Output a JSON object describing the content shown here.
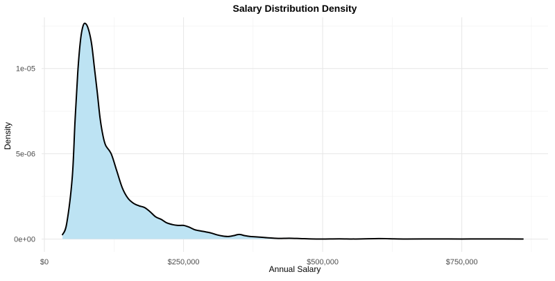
{
  "chart_data": {
    "type": "area",
    "title": "Salary Distribution Density",
    "xlabel": "Annual Salary",
    "ylabel": "Density",
    "xlim": [
      -5000,
      905000
    ],
    "ylim": [
      -7.5e-07,
      1.3e-05
    ],
    "x_ticks": [
      {
        "value": 0,
        "label": "$0"
      },
      {
        "value": 250000,
        "label": "$250,000"
      },
      {
        "value": 500000,
        "label": "$500,000"
      },
      {
        "value": 750000,
        "label": "$750,000"
      }
    ],
    "y_ticks": [
      {
        "value": 0,
        "label": "0e+00"
      },
      {
        "value": 5e-06,
        "label": "5e-06"
      },
      {
        "value": 1e-05,
        "label": "1e-05"
      }
    ],
    "grid": true,
    "fill_color": "#bde3f3",
    "line_color": "#000000",
    "series": [
      {
        "x": [
          32500,
          40000,
          50000,
          55000,
          60000,
          65000,
          70000,
          75000,
          80000,
          85000,
          90000,
          95000,
          100000,
          105000,
          110000,
          120000,
          130000,
          140000,
          150000,
          160000,
          170000,
          180000,
          190000,
          200000,
          210000,
          220000,
          230000,
          240000,
          250000,
          260000,
          270000,
          280000,
          290000,
          300000,
          310000,
          320000,
          330000,
          340000,
          350000,
          360000,
          370000,
          380000,
          400000,
          420000,
          440000,
          460000,
          480000,
          500000,
          530000,
          560000,
          600000,
          620000,
          650000,
          700000,
          750000,
          800000,
          860000
        ],
        "y": [
          2.6e-07,
          9e-07,
          3.6e-06,
          6.9e-06,
          9.8e-06,
          1.17e-05,
          1.255e-05,
          1.26e-05,
          1.22e-05,
          1.14e-05,
          1e-05,
          8.6e-06,
          7.1e-06,
          6.1e-06,
          5.5e-06,
          5e-06,
          4e-06,
          3e-06,
          2.4e-06,
          2.1e-06,
          1.95e-06,
          1.85e-06,
          1.6e-06,
          1.3e-06,
          1.15e-06,
          9.5e-07,
          8.5e-07,
          8e-07,
          8e-07,
          7e-07,
          5.5e-07,
          4.8e-07,
          4.2e-07,
          3.5e-07,
          2.5e-07,
          1.8e-07,
          1.5e-07,
          2e-07,
          2.7e-07,
          2e-07,
          1.5e-07,
          1.3e-07,
          8e-08,
          4e-08,
          5e-08,
          3e-08,
          1e-08,
          5e-09,
          1.5e-08,
          5e-09,
          3e-08,
          2e-08,
          5e-09,
          1e-08,
          5e-09,
          1e-08,
          1e-09
        ]
      }
    ]
  }
}
